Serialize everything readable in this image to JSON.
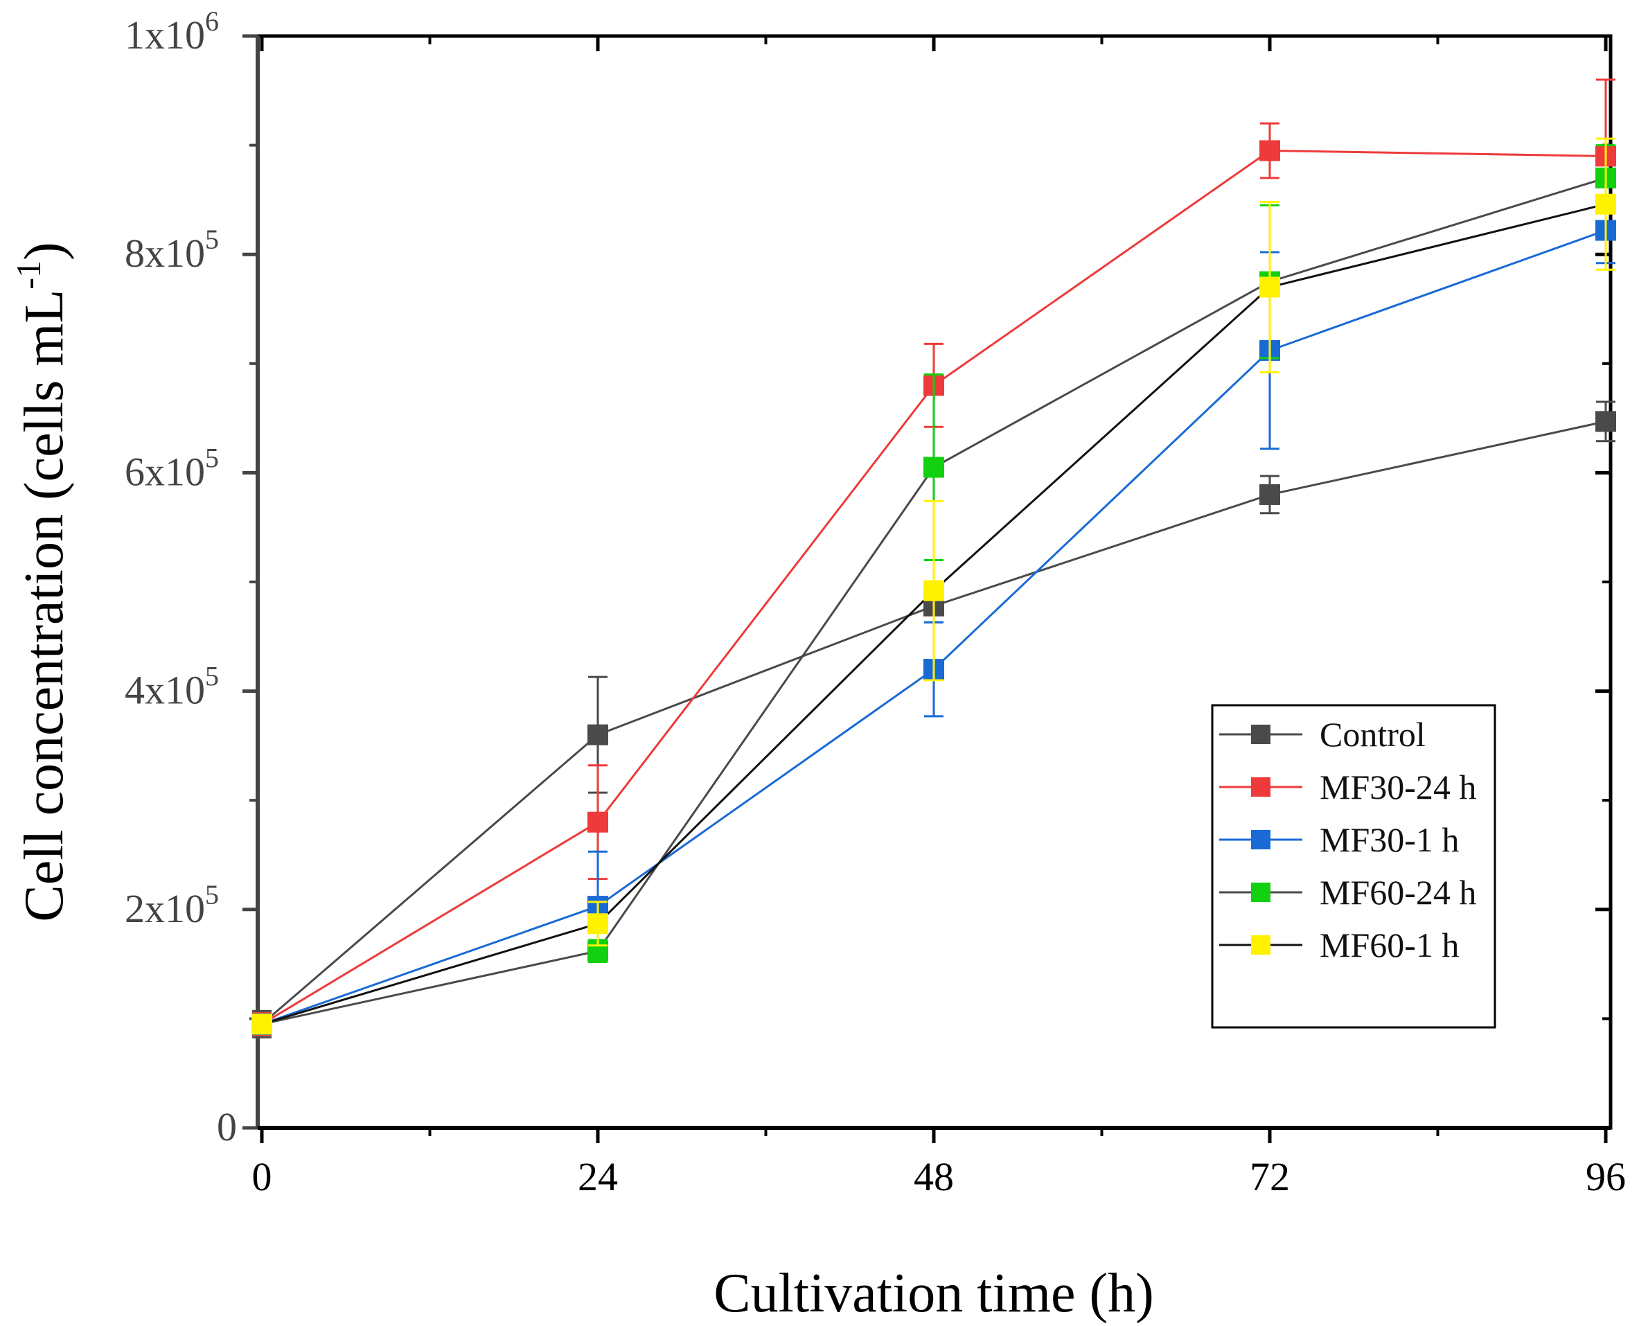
{
  "chart_data": {
    "type": "line",
    "title": "",
    "xlabel": "Cultivation time (h)",
    "ylabel": {
      "main": "Cell concentration (cells mL",
      "sup": "-1",
      "close": ")"
    },
    "x": [
      0,
      24,
      48,
      72,
      96
    ],
    "xlim": [
      -0.5,
      96.5
    ],
    "ylim": [
      0,
      1000000
    ],
    "x_ticks": [
      0,
      24,
      48,
      72,
      96
    ],
    "y_ticks": [
      {
        "value": 0,
        "label": "0",
        "base": "",
        "exp": ""
      },
      {
        "value": 200000,
        "label": "",
        "base": "2x10",
        "exp": "5"
      },
      {
        "value": 400000,
        "label": "",
        "base": "4x10",
        "exp": "5"
      },
      {
        "value": 600000,
        "label": "",
        "base": "6x10",
        "exp": "5"
      },
      {
        "value": 800000,
        "label": "",
        "base": "8x10",
        "exp": "5"
      },
      {
        "value": 1000000,
        "label": "",
        "base": "1x10",
        "exp": "6"
      }
    ],
    "grid": false,
    "legend_position": "lower-right",
    "series": [
      {
        "name": "Control",
        "marker_color": "#4a4a4a",
        "line_color": "#4a4a4a",
        "values": [
          95000,
          360000,
          478000,
          580000,
          647000
        ],
        "errors": [
          12000,
          53000,
          15000,
          17000,
          18000
        ]
      },
      {
        "name": "MF30-24 h",
        "marker_color": "#ee3a3a",
        "line_color": "#ee3a3a",
        "values": [
          95000,
          280000,
          680000,
          895000,
          890000
        ],
        "errors": [
          10000,
          52000,
          38000,
          25000,
          70000
        ]
      },
      {
        "name": "MF30-1 h",
        "marker_color": "#1a6ad6",
        "line_color": "#1a6ad6",
        "values": [
          95000,
          203000,
          420000,
          712000,
          822000
        ],
        "errors": [
          9000,
          50000,
          43000,
          90000,
          30000
        ]
      },
      {
        "name": "MF60-24 h",
        "marker_color": "#10d010",
        "line_color": "#4a4a4a",
        "values": [
          95000,
          162000,
          605000,
          775000,
          870000
        ],
        "errors": [
          8000,
          10000,
          85000,
          70000,
          30000
        ]
      },
      {
        "name": "MF60-1 h",
        "marker_color": "#fff200",
        "line_color": "#111111",
        "values": [
          95000,
          187000,
          492000,
          770000,
          846000
        ],
        "errors": [
          8000,
          20000,
          82000,
          78000,
          60000
        ]
      }
    ]
  }
}
